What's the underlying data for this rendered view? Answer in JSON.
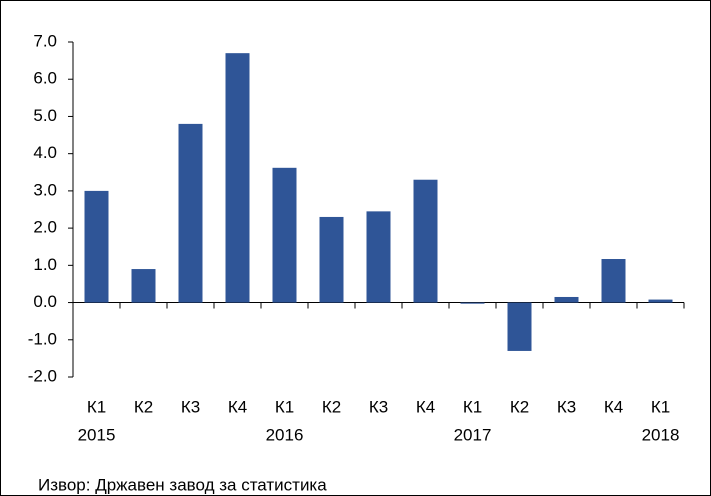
{
  "chart_data": {
    "type": "bar",
    "categories": [
      "К1",
      "К2",
      "К3",
      "К4",
      "К1",
      "К2",
      "К3",
      "К4",
      "К1",
      "К2",
      "К3",
      "К4",
      "К1"
    ],
    "years": [
      "2015",
      null,
      null,
      null,
      "2016",
      null,
      null,
      null,
      "2017",
      null,
      null,
      null,
      "2018"
    ],
    "values": [
      3.0,
      0.9,
      4.8,
      6.7,
      3.62,
      2.3,
      2.45,
      3.3,
      -0.03,
      -1.3,
      0.15,
      1.17,
      0.08
    ],
    "color": "#2f5597",
    "ylim": [
      -2,
      7
    ],
    "yticks": [
      {
        "value": -2,
        "label": "-2.0"
      },
      {
        "value": -1,
        "label": "-1.0"
      },
      {
        "value": 0,
        "label": "0.0"
      },
      {
        "value": 1,
        "label": "1.0"
      },
      {
        "value": 2,
        "label": "2.0"
      },
      {
        "value": 3,
        "label": "3.0"
      },
      {
        "value": 4,
        "label": "4.0"
      },
      {
        "value": 5,
        "label": "5.0"
      },
      {
        "value": 6,
        "label": "6.0"
      },
      {
        "value": 7,
        "label": "7.0"
      }
    ],
    "grid": false,
    "source": "Извор: Државен завод за статистика"
  }
}
